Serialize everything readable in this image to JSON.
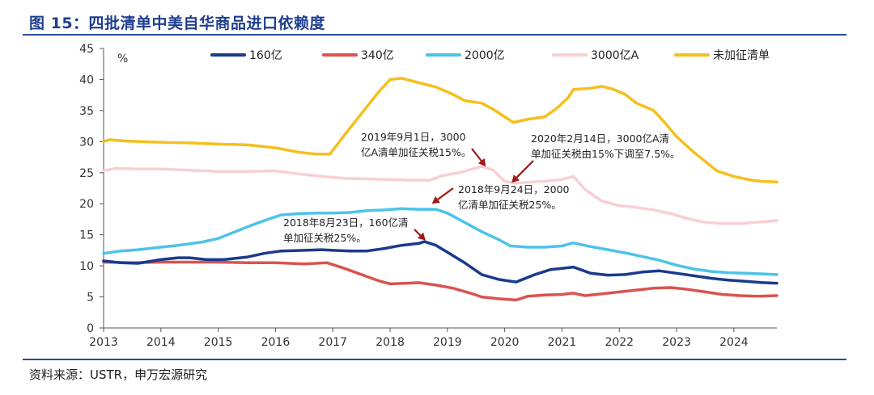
{
  "figure": {
    "title": "图 15：四批清单中美自华商品进口依赖度",
    "source": "资料来源：USTR，申万宏源研究"
  },
  "chart_data": {
    "type": "line",
    "ylabel": "%",
    "ylim": [
      0,
      45
    ],
    "yticks": [
      0,
      5,
      10,
      15,
      20,
      25,
      30,
      35,
      40,
      45
    ],
    "xlim": [
      2013,
      2024.75
    ],
    "xticks": [
      2013,
      2014,
      2015,
      2016,
      2017,
      2018,
      2019,
      2020,
      2021,
      2022,
      2023,
      2024
    ],
    "grid": false,
    "legend_position": "top",
    "series": [
      {
        "name": "160亿",
        "color": "#1a3a8c",
        "points": [
          [
            2013.0,
            10.8
          ],
          [
            2013.3,
            10.5
          ],
          [
            2013.6,
            10.4
          ],
          [
            2014.0,
            11.0
          ],
          [
            2014.3,
            11.3
          ],
          [
            2014.5,
            11.3
          ],
          [
            2014.8,
            11.0
          ],
          [
            2015.1,
            11.0
          ],
          [
            2015.5,
            11.4
          ],
          [
            2015.8,
            12.0
          ],
          [
            2016.1,
            12.4
          ],
          [
            2016.5,
            12.5
          ],
          [
            2016.8,
            12.6
          ],
          [
            2017.0,
            12.5
          ],
          [
            2017.3,
            12.4
          ],
          [
            2017.6,
            12.4
          ],
          [
            2017.9,
            12.8
          ],
          [
            2018.2,
            13.3
          ],
          [
            2018.5,
            13.6
          ],
          [
            2018.6,
            13.9
          ],
          [
            2018.8,
            13.3
          ],
          [
            2019.0,
            12.2
          ],
          [
            2019.3,
            10.5
          ],
          [
            2019.6,
            8.6
          ],
          [
            2019.9,
            7.8
          ],
          [
            2020.2,
            7.4
          ],
          [
            2020.5,
            8.5
          ],
          [
            2020.8,
            9.4
          ],
          [
            2021.0,
            9.6
          ],
          [
            2021.2,
            9.8
          ],
          [
            2021.5,
            8.8
          ],
          [
            2021.8,
            8.5
          ],
          [
            2022.1,
            8.6
          ],
          [
            2022.4,
            9.0
          ],
          [
            2022.7,
            9.2
          ],
          [
            2023.0,
            8.8
          ],
          [
            2023.3,
            8.4
          ],
          [
            2023.6,
            8.0
          ],
          [
            2023.9,
            7.7
          ],
          [
            2024.2,
            7.5
          ],
          [
            2024.5,
            7.3
          ],
          [
            2024.75,
            7.2
          ]
        ]
      },
      {
        "name": "340亿",
        "color": "#d9534f",
        "points": [
          [
            2013.0,
            10.6
          ],
          [
            2013.5,
            10.5
          ],
          [
            2014.0,
            10.6
          ],
          [
            2014.5,
            10.6
          ],
          [
            2015.0,
            10.6
          ],
          [
            2015.5,
            10.5
          ],
          [
            2016.0,
            10.5
          ],
          [
            2016.5,
            10.3
          ],
          [
            2016.9,
            10.5
          ],
          [
            2017.2,
            9.6
          ],
          [
            2017.5,
            8.6
          ],
          [
            2017.8,
            7.6
          ],
          [
            2018.0,
            7.1
          ],
          [
            2018.3,
            7.2
          ],
          [
            2018.5,
            7.3
          ],
          [
            2018.8,
            6.9
          ],
          [
            2019.1,
            6.4
          ],
          [
            2019.4,
            5.6
          ],
          [
            2019.6,
            5.0
          ],
          [
            2019.9,
            4.7
          ],
          [
            2020.2,
            4.5
          ],
          [
            2020.4,
            5.1
          ],
          [
            2020.7,
            5.3
          ],
          [
            2021.0,
            5.4
          ],
          [
            2021.2,
            5.6
          ],
          [
            2021.4,
            5.2
          ],
          [
            2021.7,
            5.5
          ],
          [
            2022.0,
            5.8
          ],
          [
            2022.3,
            6.1
          ],
          [
            2022.6,
            6.4
          ],
          [
            2022.9,
            6.5
          ],
          [
            2023.2,
            6.2
          ],
          [
            2023.5,
            5.8
          ],
          [
            2023.8,
            5.4
          ],
          [
            2024.1,
            5.2
          ],
          [
            2024.4,
            5.1
          ],
          [
            2024.75,
            5.2
          ]
        ]
      },
      {
        "name": "2000亿",
        "color": "#4cc3ea",
        "points": [
          [
            2013.0,
            12.0
          ],
          [
            2013.3,
            12.4
          ],
          [
            2013.6,
            12.6
          ],
          [
            2014.0,
            13.0
          ],
          [
            2014.3,
            13.3
          ],
          [
            2014.7,
            13.8
          ],
          [
            2015.0,
            14.4
          ],
          [
            2015.3,
            15.5
          ],
          [
            2015.6,
            16.6
          ],
          [
            2015.9,
            17.6
          ],
          [
            2016.1,
            18.2
          ],
          [
            2016.4,
            18.4
          ],
          [
            2016.7,
            18.5
          ],
          [
            2017.0,
            18.5
          ],
          [
            2017.3,
            18.6
          ],
          [
            2017.6,
            18.9
          ],
          [
            2017.9,
            19.0
          ],
          [
            2018.2,
            19.2
          ],
          [
            2018.5,
            19.1
          ],
          [
            2018.8,
            19.1
          ],
          [
            2019.0,
            18.5
          ],
          [
            2019.3,
            17.0
          ],
          [
            2019.6,
            15.5
          ],
          [
            2019.9,
            14.2
          ],
          [
            2020.1,
            13.2
          ],
          [
            2020.4,
            13.0
          ],
          [
            2020.7,
            13.0
          ],
          [
            2021.0,
            13.2
          ],
          [
            2021.2,
            13.7
          ],
          [
            2021.5,
            13.1
          ],
          [
            2021.8,
            12.6
          ],
          [
            2022.1,
            12.1
          ],
          [
            2022.4,
            11.5
          ],
          [
            2022.7,
            10.9
          ],
          [
            2023.0,
            10.1
          ],
          [
            2023.3,
            9.5
          ],
          [
            2023.6,
            9.1
          ],
          [
            2023.9,
            8.9
          ],
          [
            2024.2,
            8.8
          ],
          [
            2024.5,
            8.7
          ],
          [
            2024.75,
            8.6
          ]
        ]
      },
      {
        "name": "3000亿A",
        "color": "#f7d0d4",
        "points": [
          [
            2013.0,
            25.3
          ],
          [
            2013.2,
            25.7
          ],
          [
            2013.6,
            25.6
          ],
          [
            2014.0,
            25.6
          ],
          [
            2014.5,
            25.4
          ],
          [
            2015.0,
            25.2
          ],
          [
            2015.5,
            25.2
          ],
          [
            2016.0,
            25.3
          ],
          [
            2016.4,
            24.8
          ],
          [
            2016.8,
            24.4
          ],
          [
            2017.2,
            24.1
          ],
          [
            2017.6,
            24.0
          ],
          [
            2018.0,
            23.9
          ],
          [
            2018.3,
            23.8
          ],
          [
            2018.7,
            23.8
          ],
          [
            2018.9,
            24.5
          ],
          [
            2019.2,
            25.0
          ],
          [
            2019.4,
            25.5
          ],
          [
            2019.6,
            26.0
          ],
          [
            2019.8,
            25.4
          ],
          [
            2020.0,
            23.6
          ],
          [
            2020.2,
            23.3
          ],
          [
            2020.5,
            23.5
          ],
          [
            2020.8,
            23.7
          ],
          [
            2021.0,
            23.9
          ],
          [
            2021.2,
            24.4
          ],
          [
            2021.4,
            22.3
          ],
          [
            2021.7,
            20.4
          ],
          [
            2022.0,
            19.7
          ],
          [
            2022.3,
            19.4
          ],
          [
            2022.6,
            19.0
          ],
          [
            2022.9,
            18.4
          ],
          [
            2023.2,
            17.6
          ],
          [
            2023.5,
            17.0
          ],
          [
            2023.8,
            16.8
          ],
          [
            2024.1,
            16.8
          ],
          [
            2024.4,
            17.0
          ],
          [
            2024.75,
            17.3
          ]
        ]
      },
      {
        "name": "未加征清单",
        "color": "#f4c01e",
        "points": [
          [
            2013.0,
            30.0
          ],
          [
            2013.1,
            30.3
          ],
          [
            2013.4,
            30.1
          ],
          [
            2014.0,
            29.9
          ],
          [
            2014.5,
            29.8
          ],
          [
            2015.0,
            29.6
          ],
          [
            2015.5,
            29.5
          ],
          [
            2016.0,
            29.0
          ],
          [
            2016.4,
            28.3
          ],
          [
            2016.7,
            28.0
          ],
          [
            2016.95,
            28.0
          ],
          [
            2017.2,
            31.0
          ],
          [
            2017.5,
            34.5
          ],
          [
            2017.8,
            38.0
          ],
          [
            2018.0,
            40.0
          ],
          [
            2018.2,
            40.2
          ],
          [
            2018.5,
            39.5
          ],
          [
            2018.8,
            38.8
          ],
          [
            2019.1,
            37.6
          ],
          [
            2019.3,
            36.6
          ],
          [
            2019.6,
            36.2
          ],
          [
            2019.8,
            35.2
          ],
          [
            2020.0,
            34.0
          ],
          [
            2020.15,
            33.1
          ],
          [
            2020.4,
            33.6
          ],
          [
            2020.7,
            34.0
          ],
          [
            2020.9,
            35.3
          ],
          [
            2021.1,
            37.0
          ],
          [
            2021.2,
            38.4
          ],
          [
            2021.5,
            38.6
          ],
          [
            2021.7,
            38.9
          ],
          [
            2021.9,
            38.4
          ],
          [
            2022.1,
            37.6
          ],
          [
            2022.3,
            36.2
          ],
          [
            2022.6,
            35.0
          ],
          [
            2022.8,
            33.0
          ],
          [
            2023.0,
            30.8
          ],
          [
            2023.3,
            28.3
          ],
          [
            2023.5,
            26.8
          ],
          [
            2023.7,
            25.3
          ],
          [
            2024.0,
            24.4
          ],
          [
            2024.3,
            23.8
          ],
          [
            2024.5,
            23.6
          ],
          [
            2024.75,
            23.5
          ]
        ]
      }
    ],
    "annotations": [
      {
        "lines": [
          "2019年9月1日，3000",
          "亿A清单加征关税15%。"
        ],
        "target": [
          2019.67,
          26.0
        ]
      },
      {
        "lines": [
          "2020年2月14日，3000亿A清",
          "单加征关税由15%下调至7.5%。"
        ],
        "target": [
          2020.12,
          23.4
        ]
      },
      {
        "lines": [
          "2018年9月24日，2000",
          "亿清单加征关税25%。"
        ],
        "target": [
          2018.73,
          20.0
        ]
      },
      {
        "lines": [
          "2018年8月23日，160亿清",
          "单加征关税25%。"
        ],
        "target": [
          2018.62,
          14.1
        ]
      }
    ]
  }
}
